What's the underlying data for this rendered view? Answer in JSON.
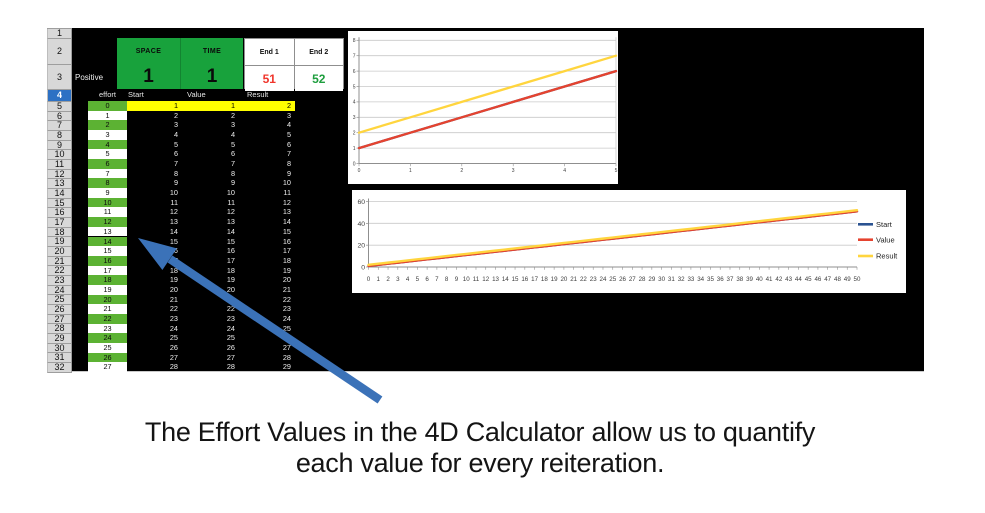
{
  "colors": {
    "header_green": "#18A23C",
    "effort_green": "#5CB233",
    "highlight_yellow": "#FFFF00",
    "end1_red": "#F0352B",
    "end2_green": "#1E9E3E",
    "selected_row_blue": "#2D71C4",
    "arrow_blue": "#3B72B8"
  },
  "sheet": {
    "row_numbers": [
      "1",
      "2",
      "3",
      "4",
      "5",
      "6",
      "7",
      "8",
      "9",
      "10",
      "11",
      "12",
      "13",
      "14",
      "15",
      "16",
      "17",
      "18",
      "19",
      "20",
      "21",
      "22",
      "23",
      "24",
      "25",
      "26",
      "27",
      "28",
      "29",
      "30",
      "31",
      "32"
    ],
    "selected_row": "4",
    "positive_label": "Positive",
    "space": {
      "header": "SPACE",
      "value": "1"
    },
    "time": {
      "header": "TIME",
      "value": "1"
    },
    "end1": {
      "header": "End 1",
      "value": "51"
    },
    "end2": {
      "header": "End 2",
      "value": "52"
    },
    "column_headers": {
      "effort": "effort",
      "start": "Start",
      "value": "Value",
      "result": "Result"
    },
    "rows": [
      {
        "effort": "0",
        "start": "1",
        "value": "1",
        "result": "2",
        "highlight": true
      },
      {
        "effort": "1",
        "start": "2",
        "value": "2",
        "result": "3",
        "highlight": false
      },
      {
        "effort": "2",
        "start": "3",
        "value": "3",
        "result": "4",
        "highlight": false
      },
      {
        "effort": "3",
        "start": "4",
        "value": "4",
        "result": "5",
        "highlight": false
      },
      {
        "effort": "4",
        "start": "5",
        "value": "5",
        "result": "6",
        "highlight": false
      },
      {
        "effort": "5",
        "start": "6",
        "value": "6",
        "result": "7",
        "highlight": false
      },
      {
        "effort": "6",
        "start": "7",
        "value": "7",
        "result": "8",
        "highlight": false
      },
      {
        "effort": "7",
        "start": "8",
        "value": "8",
        "result": "9",
        "highlight": false
      },
      {
        "effort": "8",
        "start": "9",
        "value": "9",
        "result": "10",
        "highlight": false
      },
      {
        "effort": "9",
        "start": "10",
        "value": "10",
        "result": "11",
        "highlight": false
      },
      {
        "effort": "10",
        "start": "11",
        "value": "11",
        "result": "12",
        "highlight": false
      },
      {
        "effort": "11",
        "start": "12",
        "value": "12",
        "result": "13",
        "highlight": false
      },
      {
        "effort": "12",
        "start": "13",
        "value": "13",
        "result": "14",
        "highlight": false
      },
      {
        "effort": "13",
        "start": "14",
        "value": "14",
        "result": "15",
        "highlight": false
      },
      {
        "effort": "14",
        "start": "15",
        "value": "15",
        "result": "16",
        "highlight": false
      },
      {
        "effort": "15",
        "start": "16",
        "value": "16",
        "result": "17",
        "highlight": false
      },
      {
        "effort": "16",
        "start": "17",
        "value": "17",
        "result": "18",
        "highlight": false
      },
      {
        "effort": "17",
        "start": "18",
        "value": "18",
        "result": "19",
        "highlight": false
      },
      {
        "effort": "18",
        "start": "19",
        "value": "19",
        "result": "20",
        "highlight": false
      },
      {
        "effort": "19",
        "start": "20",
        "value": "20",
        "result": "21",
        "highlight": false
      },
      {
        "effort": "20",
        "start": "21",
        "value": "21",
        "result": "22",
        "highlight": false
      },
      {
        "effort": "21",
        "start": "22",
        "value": "22",
        "result": "23",
        "highlight": false
      },
      {
        "effort": "22",
        "start": "23",
        "value": "23",
        "result": "24",
        "highlight": false
      },
      {
        "effort": "23",
        "start": "24",
        "value": "24",
        "result": "25",
        "highlight": false
      },
      {
        "effort": "24",
        "start": "25",
        "value": "25",
        "result": "26",
        "highlight": false
      },
      {
        "effort": "25",
        "start": "26",
        "value": "26",
        "result": "27",
        "highlight": false
      },
      {
        "effort": "26",
        "start": "27",
        "value": "27",
        "result": "28",
        "highlight": false
      },
      {
        "effort": "27",
        "start": "28",
        "value": "28",
        "result": "29",
        "highlight": false
      }
    ]
  },
  "chart_data": [
    {
      "type": "line",
      "title": "",
      "x": [
        0,
        1,
        2,
        3,
        4,
        5
      ],
      "series": [
        {
          "name": "Start",
          "color": "#2A5291",
          "values": [
            1,
            2,
            3,
            4,
            5,
            6
          ]
        },
        {
          "name": "Value",
          "color": "#E5432F",
          "values": [
            1,
            2,
            3,
            4,
            5,
            6
          ]
        },
        {
          "name": "Result",
          "color": "#FFD53E",
          "values": [
            2,
            3,
            4,
            5,
            6,
            7
          ]
        }
      ],
      "xlabel": "",
      "ylabel": "",
      "ylim": [
        0,
        8
      ],
      "yticks": [
        0,
        1,
        2,
        3,
        4,
        5,
        6,
        7,
        8
      ],
      "xticks": [
        0,
        1,
        2,
        3,
        4,
        5
      ],
      "grid": true,
      "legend": false
    },
    {
      "type": "line",
      "title": "",
      "x": [
        0,
        1,
        2,
        3,
        4,
        5,
        6,
        7,
        8,
        9,
        10,
        11,
        12,
        13,
        14,
        15,
        16,
        17,
        18,
        19,
        20,
        21,
        22,
        23,
        24,
        25,
        26,
        27,
        28,
        29,
        30,
        31,
        32,
        33,
        34,
        35,
        36,
        37,
        38,
        39,
        40,
        41,
        42,
        43,
        44,
        45,
        46,
        47,
        48,
        49,
        50
      ],
      "series": [
        {
          "name": "Start",
          "color": "#2A5291",
          "values": [
            1,
            2,
            3,
            4,
            5,
            6,
            7,
            8,
            9,
            10,
            11,
            12,
            13,
            14,
            15,
            16,
            17,
            18,
            19,
            20,
            21,
            22,
            23,
            24,
            25,
            26,
            27,
            28,
            29,
            30,
            31,
            32,
            33,
            34,
            35,
            36,
            37,
            38,
            39,
            40,
            41,
            42,
            43,
            44,
            45,
            46,
            47,
            48,
            49,
            50,
            51
          ]
        },
        {
          "name": "Value",
          "color": "#E5432F",
          "values": [
            1,
            2,
            3,
            4,
            5,
            6,
            7,
            8,
            9,
            10,
            11,
            12,
            13,
            14,
            15,
            16,
            17,
            18,
            19,
            20,
            21,
            22,
            23,
            24,
            25,
            26,
            27,
            28,
            29,
            30,
            31,
            32,
            33,
            34,
            35,
            36,
            37,
            38,
            39,
            40,
            41,
            42,
            43,
            44,
            45,
            46,
            47,
            48,
            49,
            50,
            51
          ]
        },
        {
          "name": "Result",
          "color": "#FFD53E",
          "values": [
            2,
            3,
            4,
            5,
            6,
            7,
            8,
            9,
            10,
            11,
            12,
            13,
            14,
            15,
            16,
            17,
            18,
            19,
            20,
            21,
            22,
            23,
            24,
            25,
            26,
            27,
            28,
            29,
            30,
            31,
            32,
            33,
            34,
            35,
            36,
            37,
            38,
            39,
            40,
            41,
            42,
            43,
            44,
            45,
            46,
            47,
            48,
            49,
            50,
            51,
            52
          ]
        }
      ],
      "xlabel": "",
      "ylabel": "",
      "ylim": [
        0,
        60
      ],
      "yticks": [
        0,
        20,
        40,
        60
      ],
      "xticks": [
        0,
        1,
        2,
        3,
        4,
        5,
        6,
        7,
        8,
        9,
        10,
        11,
        12,
        13,
        14,
        15,
        16,
        17,
        18,
        19,
        20,
        21,
        22,
        23,
        24,
        25,
        26,
        27,
        28,
        29,
        30,
        31,
        32,
        33,
        34,
        35,
        36,
        37,
        38,
        39,
        40,
        41,
        42,
        43,
        44,
        45,
        46,
        47,
        48,
        49,
        50
      ],
      "grid": true,
      "legend": true,
      "legend_position": "right"
    }
  ],
  "caption": {
    "line1": "The Effort Values in the 4D Calculator allow us to quantify",
    "line2": "each value for every reiteration."
  }
}
